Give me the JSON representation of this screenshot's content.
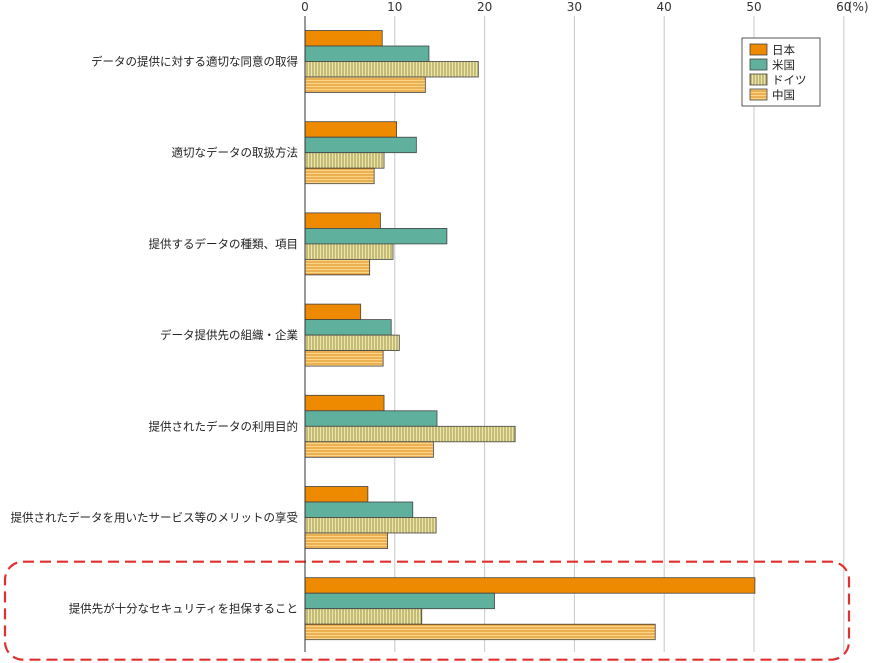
{
  "chart_data": {
    "type": "bar",
    "orientation": "horizontal",
    "unit_label": "(%)",
    "xlim": [
      0,
      60
    ],
    "x_ticks": [
      0,
      10,
      20,
      30,
      40,
      50,
      60
    ],
    "x_tick_labels": [
      "0",
      "10",
      "20",
      "30",
      "40",
      "50",
      "60"
    ],
    "grid": true,
    "legend_position": "top-right",
    "categories": [
      "データの提供に対する適切な同意の取得",
      "適切なデータの取扱方法",
      "提供するデータの種類、項目",
      "データ提供先の組織・企業",
      "提供されたデータの利用目的",
      "提供されたデータを用いたサービス等のメリットの享受",
      "提供先が十分なセキュリティを担保すること"
    ],
    "series": [
      {
        "name": "日本",
        "color": "#ee8a00",
        "pattern": "solid",
        "values": [
          8.6,
          10.2,
          8.4,
          6.2,
          8.8,
          7.0,
          50.1
        ]
      },
      {
        "name": "米国",
        "color": "#5fb09c",
        "pattern": "solid",
        "values": [
          13.8,
          12.4,
          15.8,
          9.6,
          14.7,
          12.0,
          21.1
        ]
      },
      {
        "name": "ドイツ",
        "color": "#e8e2a0",
        "pattern": "vertical-lines",
        "values": [
          19.3,
          8.8,
          9.8,
          10.5,
          23.4,
          14.6,
          13.0
        ]
      },
      {
        "name": "中国",
        "color": "#f7c46a",
        "pattern": "horizontal-lines",
        "values": [
          13.4,
          7.7,
          7.2,
          8.7,
          14.3,
          9.2,
          39.0
        ]
      }
    ],
    "highlight_category_index": 6,
    "highlight_color": "#e03030"
  }
}
